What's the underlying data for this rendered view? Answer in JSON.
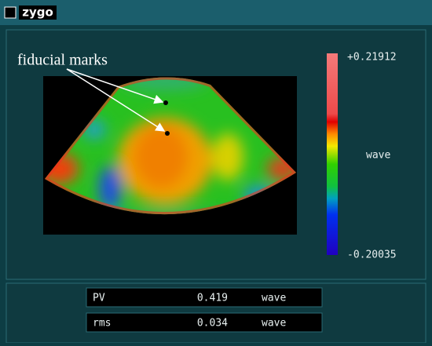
{
  "header": {
    "logo": "zygo"
  },
  "map": {
    "annotation": "fiducial marks"
  },
  "colorbar": {
    "max": "+0.21912",
    "unit": "wave",
    "min": "-0.20035"
  },
  "stats": {
    "rows": [
      [
        "PV",
        "0.419",
        "wave"
      ],
      [
        "rms",
        "0.034",
        "wave"
      ]
    ]
  }
}
